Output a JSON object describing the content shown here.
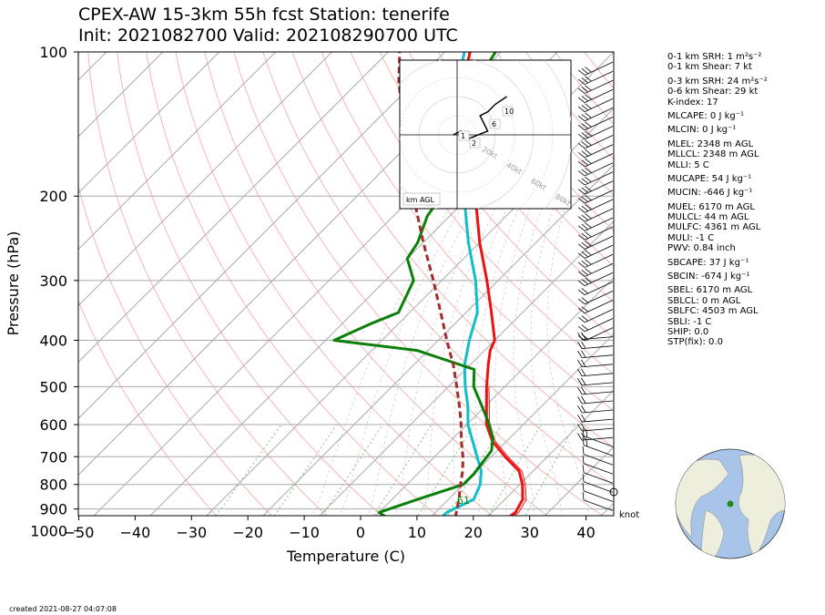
{
  "title": {
    "line1": "CPEX-AW 15-3km  55h fcst  Station: tenerife",
    "line2": "Init: 2021082700  Valid: 202108290700 UTC"
  },
  "chart_data": {
    "type": "line",
    "subtype": "skew-t log-p",
    "xlabel": "Temperature (C)",
    "ylabel": "Pressure (hPa)",
    "x_ticks": [
      -50,
      -40,
      -30,
      -20,
      -10,
      0,
      10,
      20,
      30,
      40
    ],
    "y_ticks": [
      100,
      200,
      300,
      400,
      500,
      600,
      700,
      800,
      900,
      1000
    ],
    "xlim": [
      -50,
      45
    ],
    "ylim": [
      1050,
      100
    ],
    "y_scale": "log",
    "series": [
      {
        "key": "temperature",
        "color": "#ee1111",
        "points": [
          [
            1030,
            18.5
          ],
          [
            940,
            23.8
          ],
          [
            915,
            24.2
          ],
          [
            860,
            23.2
          ],
          [
            800,
            20.5
          ],
          [
            750,
            17.5
          ],
          [
            700,
            12.5
          ],
          [
            650,
            7.5
          ],
          [
            600,
            3.5
          ],
          [
            550,
            0.3
          ],
          [
            500,
            -3.2
          ],
          [
            450,
            -6.8
          ],
          [
            420,
            -9.0
          ],
          [
            400,
            -10.0
          ],
          [
            350,
            -15.5
          ],
          [
            300,
            -22.0
          ],
          [
            250,
            -30.0
          ],
          [
            200,
            -39.0
          ],
          [
            170,
            -45.0
          ],
          [
            150,
            -50.5
          ],
          [
            130,
            -56.5
          ],
          [
            115,
            -61.5
          ],
          [
            100,
            -65.5
          ]
        ]
      },
      {
        "key": "temperature_thin",
        "color": "#ee1111",
        "points": [
          [
            1030,
            18.5
          ],
          [
            940,
            24.4
          ],
          [
            915,
            24.8
          ],
          [
            860,
            23.8
          ],
          [
            800,
            21.0
          ],
          [
            750,
            18.0
          ],
          [
            700,
            13.0
          ],
          [
            650,
            8.0
          ],
          [
            600,
            4.0
          ],
          [
            550,
            0.8
          ],
          [
            500,
            -2.8
          ]
        ]
      },
      {
        "key": "virtual_temperature_wetbulb",
        "color": "#10bfc8",
        "points": [
          [
            1030,
            16.0
          ],
          [
            940,
            12.0
          ],
          [
            915,
            12.0
          ],
          [
            860,
            14.5
          ],
          [
            800,
            13.0
          ],
          [
            750,
            10.8
          ],
          [
            700,
            7.5
          ],
          [
            650,
            4.0
          ],
          [
            600,
            0.2
          ],
          [
            550,
            -3.0
          ],
          [
            500,
            -7.0
          ],
          [
            450,
            -11.0
          ],
          [
            400,
            -14.5
          ],
          [
            350,
            -18.0
          ],
          [
            300,
            -24.0
          ],
          [
            250,
            -32.0
          ],
          [
            200,
            -41.0
          ],
          [
            170,
            -47.0
          ],
          [
            150,
            -52.5
          ],
          [
            130,
            -58.5
          ],
          [
            115,
            -62.5
          ],
          [
            100,
            -66.5
          ]
        ]
      },
      {
        "key": "dewpoint",
        "color": "#0a7f0a",
        "points": [
          [
            1030,
            18.0
          ],
          [
            980,
            9.0
          ],
          [
            940,
            2.5
          ],
          [
            915,
            0.0
          ],
          [
            860,
            4.5
          ],
          [
            800,
            10.0
          ],
          [
            760,
            10.0
          ],
          [
            720,
            9.5
          ],
          [
            680,
            9.0
          ],
          [
            640,
            7.0
          ],
          [
            600,
            4.0
          ],
          [
            550,
            -0.5
          ],
          [
            500,
            -5.5
          ],
          [
            460,
            -8.5
          ],
          [
            420,
            -22.0
          ],
          [
            400,
            -38.5
          ],
          [
            370,
            -35.0
          ],
          [
            350,
            -32.0
          ],
          [
            300,
            -35.0
          ],
          [
            270,
            -40.0
          ],
          [
            250,
            -41.0
          ],
          [
            220,
            -44.0
          ],
          [
            200,
            -45.0
          ],
          [
            175,
            -47.0
          ],
          [
            160,
            -52.0
          ],
          [
            145,
            -54.5
          ],
          [
            130,
            -57.0
          ],
          [
            115,
            -59.0
          ],
          [
            100,
            -61.0
          ]
        ]
      },
      {
        "key": "parcel",
        "color": "#a52a2a",
        "dashed": true,
        "points": [
          [
            1030,
            18.5
          ],
          [
            940,
            14.5
          ],
          [
            850,
            11.5
          ],
          [
            800,
            9.5
          ],
          [
            750,
            7.5
          ],
          [
            700,
            5.0
          ],
          [
            650,
            2.0
          ],
          [
            600,
            -1.0
          ],
          [
            550,
            -4.5
          ],
          [
            500,
            -8.5
          ],
          [
            450,
            -13.0
          ],
          [
            400,
            -18.5
          ],
          [
            350,
            -24.5
          ],
          [
            300,
            -31.5
          ],
          [
            250,
            -40.0
          ],
          [
            200,
            -50.0
          ],
          [
            170,
            -57.0
          ],
          [
            150,
            -62.0
          ],
          [
            130,
            -68.0
          ],
          [
            115,
            -73.0
          ],
          [
            100,
            -78.0
          ]
        ]
      }
    ],
    "annotation": "61",
    "wind_unit": "knot",
    "hodograph": {
      "label": "km AGL",
      "rings": [
        "20kt",
        "40kt",
        "60kt",
        "80kt"
      ],
      "height_labels": [
        "1",
        "2",
        "6",
        "10"
      ],
      "trace": [
        [
          -1,
          0
        ],
        [
          1,
          1
        ],
        [
          3,
          -1
        ],
        [
          8,
          1
        ],
        [
          6,
          5
        ],
        [
          8,
          6
        ],
        [
          10,
          8
        ],
        [
          13,
          10
        ]
      ]
    }
  },
  "indices": [
    {
      "text": "0-1 km SRH: 1 m²s⁻²",
      "gap": false
    },
    {
      "text": "0-1 km Shear: 7 kt",
      "gap": false
    },
    {
      "text": "0-3 km SRH: 24 m²s⁻²",
      "gap": true
    },
    {
      "text": "0-6 km Shear: 29 kt",
      "gap": false
    },
    {
      "text": "K-index: 17",
      "gap": false
    },
    {
      "text": "MLCAPE: 0 J kg⁻¹",
      "gap": true
    },
    {
      "text": "MLCIN: 0 J kg⁻¹",
      "gap": true
    },
    {
      "text": "MLEL: 2348 m AGL",
      "gap": true
    },
    {
      "text": "MLLCL: 2348 m AGL",
      "gap": false
    },
    {
      "text": "MLLI: 5 C",
      "gap": false
    },
    {
      "text": "MUCAPE: 54 J kg⁻¹",
      "gap": true
    },
    {
      "text": "MUCIN: -646 J kg⁻¹",
      "gap": true
    },
    {
      "text": "MUEL: 6170 m AGL",
      "gap": true
    },
    {
      "text": "MULCL: 44 m AGL",
      "gap": false
    },
    {
      "text": "MULFC: 4361 m AGL",
      "gap": false
    },
    {
      "text": "MULI: -1 C",
      "gap": false
    },
    {
      "text": "PWV: 0.84 inch",
      "gap": false
    },
    {
      "text": "SBCAPE: 37 J kg⁻¹",
      "gap": true
    },
    {
      "text": "SBCIN: -674 J kg⁻¹",
      "gap": true
    },
    {
      "text": "SBEL: 6170 m AGL",
      "gap": true
    },
    {
      "text": "SBLCL: 0 m AGL",
      "gap": false
    },
    {
      "text": "SBLFC: 4503 m AGL",
      "gap": false
    },
    {
      "text": "SBLI: -1 C",
      "gap": false
    },
    {
      "text": "SHIP: 0.0",
      "gap": false
    },
    {
      "text": "STP(fix): 0.0",
      "gap": false
    }
  ],
  "footer": {
    "created": "created 2021-08-27 04:07:08"
  },
  "colors": {
    "isobar": "#aaaaaa",
    "isotherm": "#aaaaaa",
    "dry_adiabat": "#f4b6b6",
    "mixing_ratio": "#7ec87e",
    "ocean": "#a8c4e8",
    "land": "#eeeedd",
    "station": "#228822"
  }
}
